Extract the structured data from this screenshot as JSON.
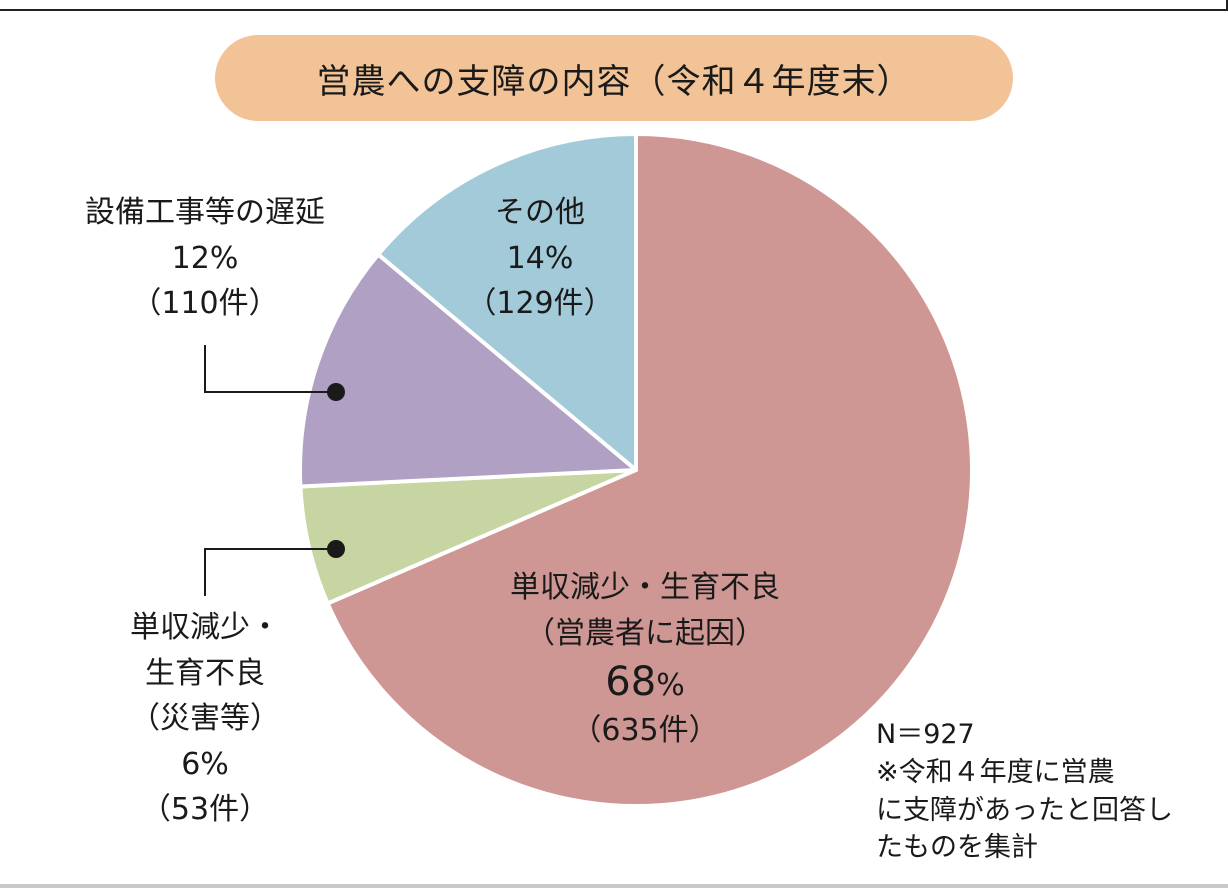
{
  "chart_data": {
    "type": "pie",
    "title": "営農への支障の内容（令和４年度末）",
    "total_label": "N＝927",
    "note_lines": [
      "※令和４年度に営農",
      "に支障があったと回答し",
      "たものを集計"
    ],
    "slices": [
      {
        "name_lines": [
          "単収減少・生育不良",
          "（営農者に起因）"
        ],
        "percent": 68,
        "percent_label": "68",
        "percent_sign": "%",
        "count_label": "（635件）",
        "count": 635,
        "color": "#cf9794"
      },
      {
        "name_lines": [
          "単収減少・",
          "生育不良",
          "（災害等）"
        ],
        "percent": 6,
        "percent_label": "6%",
        "count_label": "（53件）",
        "count": 53,
        "color": "#c6d5a1"
      },
      {
        "name_lines": [
          "設備工事等の遅延"
        ],
        "percent": 12,
        "percent_label": "12%",
        "count_label": "（110件）",
        "count": 110,
        "color": "#b0a0c4"
      },
      {
        "name_lines": [
          "その他"
        ],
        "percent": 14,
        "percent_label": "14%",
        "count_label": "（129件）",
        "count": 129,
        "color": "#a3cad9"
      }
    ],
    "legend": "none",
    "grid": false
  }
}
